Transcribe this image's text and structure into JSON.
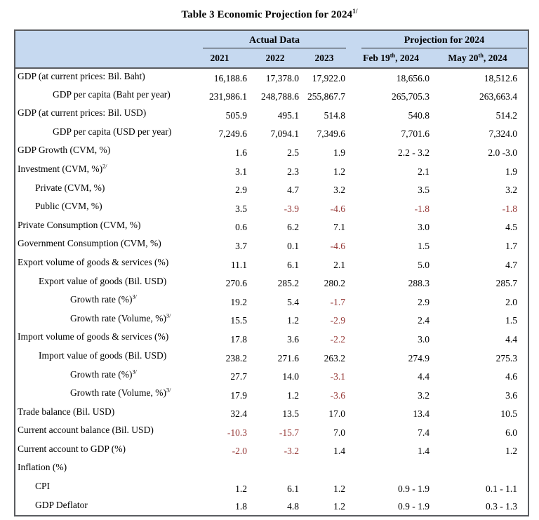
{
  "title": {
    "text": "Table 3 Economic Projection for 2024",
    "sup": "1/"
  },
  "header": {
    "group_actual": "Actual Data",
    "group_projection": "Projection for 2024",
    "col_years": [
      {
        "text": "2021"
      },
      {
        "text": "2022"
      },
      {
        "text": "2023"
      }
    ],
    "col_projections": [
      {
        "text": "Feb 19",
        "sup": "th",
        "rest": ", 2024"
      },
      {
        "text": "May 20",
        "sup": "th",
        "rest": ", 2024"
      }
    ]
  },
  "colors": {
    "header_bg": "#c6d9f0",
    "table_border": "#5a5c60",
    "text": "#000000",
    "negative_value": "#953735"
  },
  "chart_data": {
    "type": "table",
    "title": "Table 3 Economic Projection for 2024 1/",
    "column_groups": [
      {
        "label": "Actual Data",
        "columns": [
          "2021",
          "2022",
          "2023"
        ]
      },
      {
        "label": "Projection for 2024",
        "columns": [
          "Feb 19th, 2024",
          "May 20th, 2024"
        ]
      }
    ],
    "columns": [
      "2021",
      "2022",
      "2023",
      "Feb 19th, 2024",
      "May 20th, 2024"
    ],
    "rows": [
      {
        "label": "GDP (at current prices: Bil. Baht)",
        "indent": 0,
        "values": [
          "16,188.6",
          "17,378.0",
          "17,922.0",
          "18,656.0",
          "18,512.6"
        ]
      },
      {
        "label": "GDP per capita (Baht per year)",
        "indent": 3,
        "values": [
          "231,986.1",
          "248,788.6",
          "255,867.7",
          "265,705.3",
          "263,663.4"
        ]
      },
      {
        "label": "GDP (at current prices: Bil. USD)",
        "indent": 0,
        "values": [
          "505.9",
          "495.1",
          "514.8",
          "540.8",
          "514.2"
        ]
      },
      {
        "label": "GDP per capita (USD per year)",
        "indent": 3,
        "values": [
          "7,249.6",
          "7,094.1",
          "7,349.6",
          "7,701.6",
          "7,324.0"
        ]
      },
      {
        "label": "GDP Growth (CVM, %)",
        "indent": 0,
        "values": [
          "1.6",
          "2.5",
          "1.9",
          "2.2 - 3.2",
          "2.0 -3.0"
        ]
      },
      {
        "label": "Investment (CVM, %)",
        "sup": "2/",
        "indent": 0,
        "values": [
          "3.1",
          "2.3",
          "1.2",
          "2.1",
          "1.9"
        ]
      },
      {
        "label": "Private (CVM, %)",
        "indent": 1,
        "values": [
          "2.9",
          "4.7",
          "3.2",
          "3.5",
          "3.2"
        ]
      },
      {
        "label": "Public (CVM, %)",
        "indent": 1,
        "values": [
          "3.5",
          "-3.9",
          "-4.6",
          "-1.8",
          "-1.8"
        ]
      },
      {
        "label": "Private Consumption (CVM, %)",
        "indent": 0,
        "values": [
          "0.6",
          "6.2",
          "7.1",
          "3.0",
          "4.5"
        ]
      },
      {
        "label": "Government Consumption (CVM, %)",
        "indent": 0,
        "values": [
          "3.7",
          "0.1",
          "-4.6",
          "1.5",
          "1.7"
        ]
      },
      {
        "label": "Export volume of goods & services (%)",
        "indent": 0,
        "values": [
          "11.1",
          "6.1",
          "2.1",
          "5.0",
          "4.7"
        ]
      },
      {
        "label": "Export value of goods (Bil. USD)",
        "indent": 2,
        "values": [
          "270.6",
          "285.2",
          "280.2",
          "288.3",
          "285.7"
        ]
      },
      {
        "label": "Growth rate (%)",
        "sup": "3/",
        "indent": 4,
        "values": [
          "19.2",
          "5.4",
          "-1.7",
          "2.9",
          "2.0"
        ]
      },
      {
        "label": "Growth rate (Volume, %)",
        "sup": "3/",
        "indent": 4,
        "values": [
          "15.5",
          "1.2",
          "-2.9",
          "2.4",
          "1.5"
        ]
      },
      {
        "label": "Import volume of goods & services (%)",
        "indent": 0,
        "values": [
          "17.8",
          "3.6",
          "-2.2",
          "3.0",
          "4.4"
        ]
      },
      {
        "label": "Import value of goods (Bil. USD)",
        "indent": 2,
        "values": [
          "238.2",
          "271.6",
          "263.2",
          "274.9",
          "275.3"
        ]
      },
      {
        "label": "Growth rate (%)",
        "sup": "3/",
        "indent": 4,
        "values": [
          "27.7",
          "14.0",
          "-3.1",
          "4.4",
          "4.6"
        ]
      },
      {
        "label": "Growth rate (Volume, %)",
        "sup": "3/",
        "indent": 4,
        "values": [
          "17.9",
          "1.2",
          "-3.6",
          "3.2",
          "3.6"
        ]
      },
      {
        "label": "Trade balance (Bil. USD)",
        "indent": 0,
        "values": [
          "32.4",
          "13.5",
          "17.0",
          "13.4",
          "10.5"
        ]
      },
      {
        "label": "Current account balance (Bil. USD)",
        "indent": 0,
        "values": [
          "-10.3",
          "-15.7",
          "7.0",
          "7.4",
          "6.0"
        ]
      },
      {
        "label": "Current account to GDP (%)",
        "indent": 0,
        "values": [
          "-2.0",
          "-3.2",
          "1.4",
          "1.4",
          "1.2"
        ]
      },
      {
        "label": "Inflation (%)",
        "indent": 0,
        "values": [
          "",
          "",
          "",
          "",
          ""
        ]
      },
      {
        "label": "CPI",
        "indent": 1,
        "values": [
          "1.2",
          "6.1",
          "1.2",
          "0.9 - 1.9",
          "0.1 - 1.1"
        ]
      },
      {
        "label": "GDP Deflator",
        "indent": 1,
        "values": [
          "1.8",
          "4.8",
          "1.2",
          "0.9 - 1.9",
          "0.3 - 1.3"
        ]
      }
    ]
  }
}
